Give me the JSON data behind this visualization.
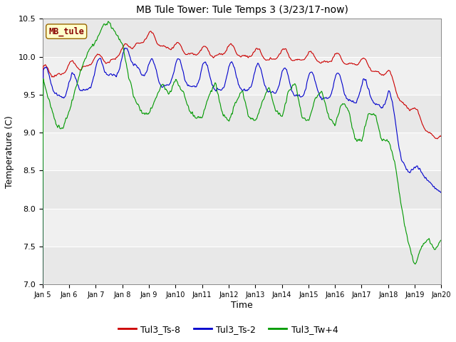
{
  "title": "MB Tule Tower: Tule Temps 3 (3/23/17-now)",
  "xlabel": "Time",
  "ylabel": "Temperature (C)",
  "ylim": [
    7.0,
    10.5
  ],
  "yticks": [
    7.0,
    7.5,
    8.0,
    8.5,
    9.0,
    9.5,
    10.0,
    10.5
  ],
  "xtick_labels": [
    "Jan 5",
    "Jan 6",
    "Jan 7",
    "Jan 8",
    "Jan 9",
    "Jan 10",
    "Jan 11",
    "Jan 12",
    "Jan 13",
    "Jan 14",
    "Jan 15",
    "Jan 16",
    "Jan 17",
    "Jan 18",
    "Jan 19",
    "Jan 20"
  ],
  "colors": {
    "red": "#cc0000",
    "blue": "#0000cc",
    "green": "#009900",
    "bg_light": "#e8e8e8",
    "bg_dark": "#d0d0d0",
    "plot_bg": "#f0f0f0"
  },
  "legend_label": "MB_tule",
  "series_labels": [
    "Tul3_Ts-8",
    "Tul3_Ts-2",
    "Tul3_Tw+4"
  ],
  "figsize": [
    6.4,
    4.8
  ],
  "dpi": 100
}
